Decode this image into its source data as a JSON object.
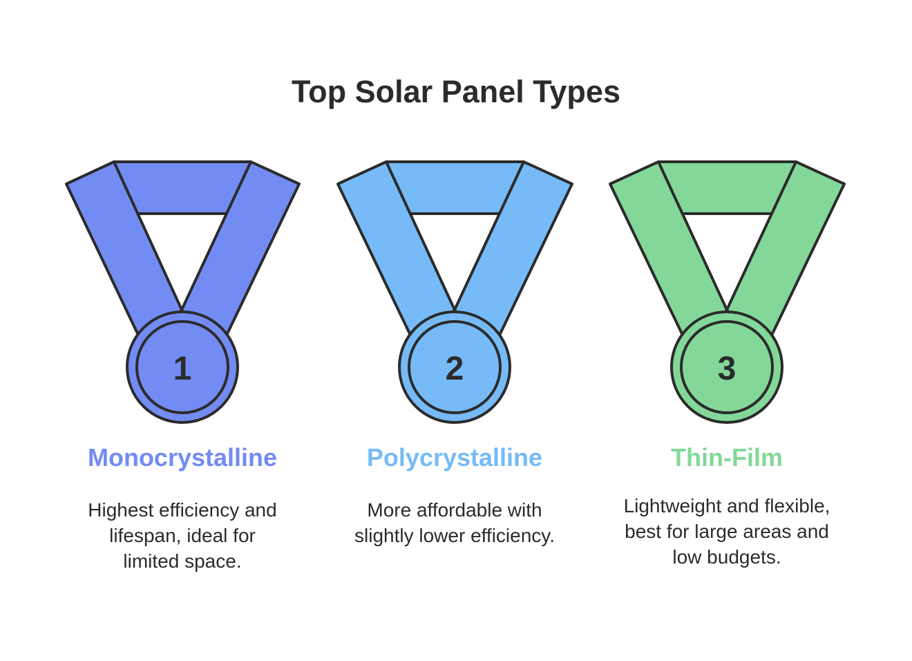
{
  "title": "Top Solar Panel Types",
  "panels": [
    {
      "rank": "1",
      "name": "Monocrystalline",
      "description": "Highest efficiency and lifespan, ideal for limited space.",
      "color": "#738cf3"
    },
    {
      "rank": "2",
      "name": "Polycrystalline",
      "description": "More affordable with slightly lower efficiency.",
      "color": "#76bbf7"
    },
    {
      "rank": "3",
      "name": "Thin-Film",
      "description": "Lightweight and flexible, best for large areas and low budgets.",
      "color": "#83d899"
    }
  ],
  "outline_color": "#2b2b2b"
}
